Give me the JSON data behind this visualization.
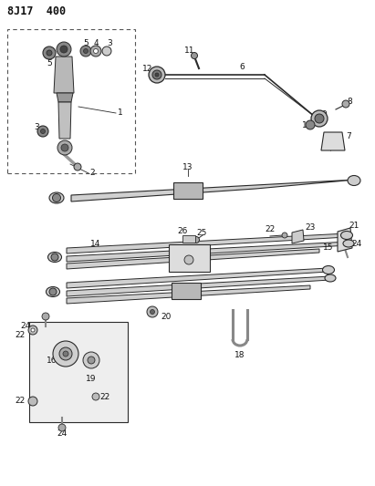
{
  "title": "8J17  400",
  "bg_color": "#ffffff",
  "line_color": "#2a2a2a",
  "text_color": "#111111",
  "title_fontsize": 8.5,
  "label_fontsize": 6.5
}
